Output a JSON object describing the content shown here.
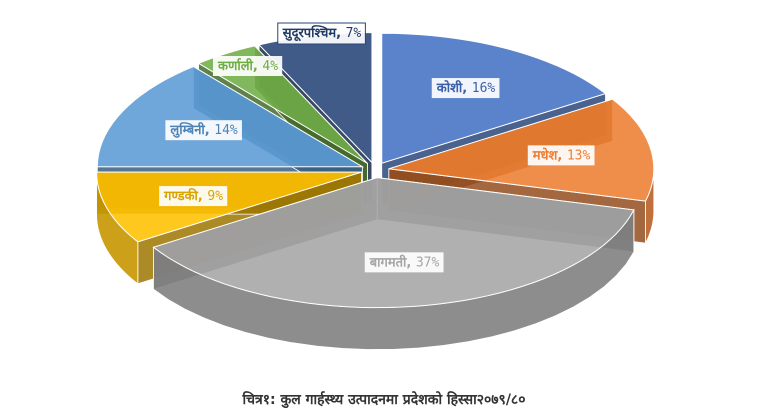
{
  "caption": "चित्र१: कुल गार्हस्थ्य उत्पादनमा प्रदेशको हिस्सा२०७९/८०",
  "chart_data": {
    "type": "pie",
    "title": "",
    "slices": [
      {
        "name": "कोशी",
        "value": 16,
        "label": "16%",
        "color": "#4472C4"
      },
      {
        "name": "मधेश",
        "value": 13,
        "label": "13%",
        "color": "#ED7D31"
      },
      {
        "name": "बागमती",
        "value": 37,
        "label": "37%",
        "color": "#A5A5A5"
      },
      {
        "name": "गण्डकी",
        "value": 9,
        "label": "9%",
        "color": "#FFC000"
      },
      {
        "name": "लुम्बिनी",
        "value": 14,
        "label": "14%",
        "color": "#5B9BD5"
      },
      {
        "name": "कर्णाली",
        "value": 4,
        "label": "4%",
        "color": "#70AD47"
      },
      {
        "name": "सुदूरपश्चिम",
        "value": 7,
        "label": "7%",
        "color": "#264478"
      }
    ],
    "style": "3d-exploded"
  }
}
